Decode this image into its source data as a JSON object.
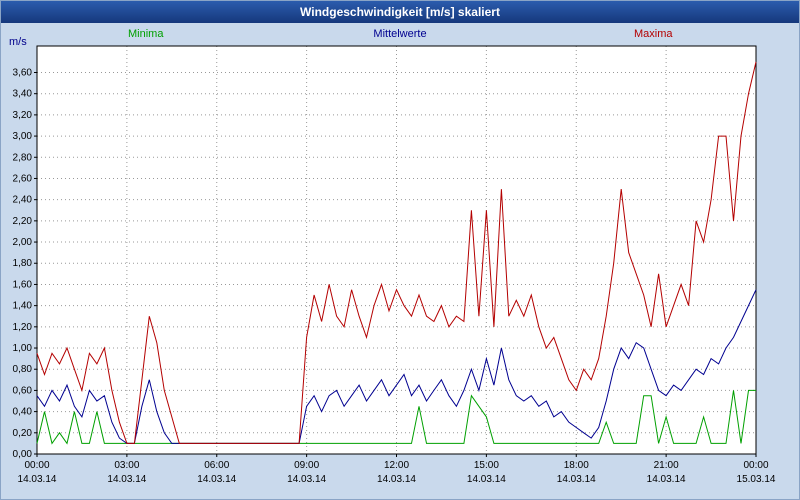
{
  "title_bar": {
    "title": "Windgeschwindigkeit [m/s] skaliert"
  },
  "colors": {
    "titlebar_top": "#2b5cad",
    "titlebar_bottom": "#16387c",
    "background": "#c9d9ec",
    "plot_background": "#ffffff",
    "grid": "#999999",
    "axis_text": "#000000",
    "minima": "#00a000",
    "mittelwerte": "#000090",
    "maxima": "#b40000"
  },
  "axis": {
    "y_unit_label": "m/s",
    "y_tick_labels": [
      "0,00",
      "0,20",
      "0,40",
      "0,60",
      "0,80",
      "1,00",
      "1,20",
      "1,40",
      "1,60",
      "1,80",
      "2,00",
      "2,20",
      "2,40",
      "2,60",
      "2,80",
      "3,00",
      "3,20",
      "3,40",
      "3,60"
    ],
    "x_tick_labels": [
      "00:00",
      "03:00",
      "06:00",
      "09:00",
      "12:00",
      "15:00",
      "18:00",
      "21:00",
      "00:00"
    ],
    "x_date_labels": [
      "14.03.14",
      "14.03.14",
      "14.03.14",
      "14.03.14",
      "14.03.14",
      "14.03.14",
      "14.03.14",
      "14.03.14",
      "15.03.14"
    ]
  },
  "chart_data": {
    "type": "line",
    "title": "Windgeschwindigkeit [m/s] skaliert",
    "x_start_hour": 0,
    "x_end_hour": 24,
    "x_step_hours": 0.25,
    "ylim": [
      0,
      3.85
    ],
    "y_tick_step": 0.2,
    "legend_position": "top",
    "grid": true,
    "series": [
      {
        "name": "Minima",
        "color": "#00a000",
        "values": [
          0.1,
          0.4,
          0.1,
          0.2,
          0.1,
          0.4,
          0.1,
          0.1,
          0.4,
          0.1,
          0.1,
          0.1,
          0.1,
          0.1,
          0.1,
          0.1,
          0.1,
          0.1,
          0.1,
          0.1,
          0.1,
          0.1,
          0.1,
          0.1,
          0.1,
          0.1,
          0.1,
          0.1,
          0.1,
          0.1,
          0.1,
          0.1,
          0.1,
          0.1,
          0.1,
          0.1,
          0.1,
          0.1,
          0.1,
          0.1,
          0.1,
          0.1,
          0.1,
          0.1,
          0.1,
          0.1,
          0.1,
          0.1,
          0.1,
          0.1,
          0.1,
          0.45,
          0.1,
          0.1,
          0.1,
          0.1,
          0.1,
          0.1,
          0.55,
          0.45,
          0.35,
          0.1,
          0.1,
          0.1,
          0.1,
          0.1,
          0.1,
          0.1,
          0.1,
          0.1,
          0.1,
          0.1,
          0.1,
          0.1,
          0.1,
          0.1,
          0.3,
          0.1,
          0.1,
          0.1,
          0.1,
          0.55,
          0.55,
          0.1,
          0.35,
          0.1,
          0.1,
          0.1,
          0.1,
          0.35,
          0.1,
          0.1,
          0.1,
          0.6,
          0.1,
          0.6,
          0.6
        ]
      },
      {
        "name": "Mittelwerte",
        "color": "#000090",
        "values": [
          0.55,
          0.45,
          0.6,
          0.5,
          0.65,
          0.45,
          0.35,
          0.6,
          0.5,
          0.55,
          0.3,
          0.15,
          0.1,
          0.1,
          0.45,
          0.7,
          0.4,
          0.2,
          0.1,
          0.1,
          0.1,
          0.1,
          0.1,
          0.1,
          0.1,
          0.1,
          0.1,
          0.1,
          0.1,
          0.1,
          0.1,
          0.1,
          0.1,
          0.1,
          0.1,
          0.1,
          0.45,
          0.55,
          0.4,
          0.55,
          0.6,
          0.45,
          0.55,
          0.65,
          0.5,
          0.6,
          0.7,
          0.55,
          0.65,
          0.75,
          0.55,
          0.65,
          0.5,
          0.6,
          0.7,
          0.55,
          0.45,
          0.6,
          0.8,
          0.6,
          0.9,
          0.65,
          1.0,
          0.7,
          0.55,
          0.5,
          0.55,
          0.45,
          0.5,
          0.35,
          0.4,
          0.3,
          0.25,
          0.2,
          0.15,
          0.25,
          0.5,
          0.8,
          1.0,
          0.9,
          1.05,
          1.0,
          0.8,
          0.6,
          0.55,
          0.65,
          0.6,
          0.7,
          0.8,
          0.75,
          0.9,
          0.85,
          1.0,
          1.1,
          1.25,
          1.4,
          1.55
        ]
      },
      {
        "name": "Maxima",
        "color": "#b40000",
        "values": [
          0.95,
          0.75,
          0.95,
          0.85,
          1.0,
          0.8,
          0.6,
          0.95,
          0.85,
          1.0,
          0.6,
          0.3,
          0.1,
          0.1,
          0.7,
          1.3,
          1.05,
          0.6,
          0.35,
          0.1,
          0.1,
          0.1,
          0.1,
          0.1,
          0.1,
          0.1,
          0.1,
          0.1,
          0.1,
          0.1,
          0.1,
          0.1,
          0.1,
          0.1,
          0.1,
          0.1,
          1.1,
          1.5,
          1.25,
          1.6,
          1.3,
          1.2,
          1.55,
          1.3,
          1.1,
          1.4,
          1.6,
          1.35,
          1.55,
          1.4,
          1.3,
          1.5,
          1.3,
          1.25,
          1.4,
          1.2,
          1.3,
          1.25,
          2.3,
          1.3,
          2.3,
          1.2,
          2.5,
          1.3,
          1.45,
          1.3,
          1.5,
          1.2,
          1.0,
          1.1,
          0.9,
          0.7,
          0.6,
          0.8,
          0.7,
          0.9,
          1.3,
          1.8,
          2.5,
          1.9,
          1.7,
          1.5,
          1.2,
          1.7,
          1.2,
          1.4,
          1.6,
          1.4,
          2.2,
          2.0,
          2.4,
          3.0,
          3.0,
          2.2,
          3.0,
          3.4,
          3.7
        ]
      }
    ]
  }
}
